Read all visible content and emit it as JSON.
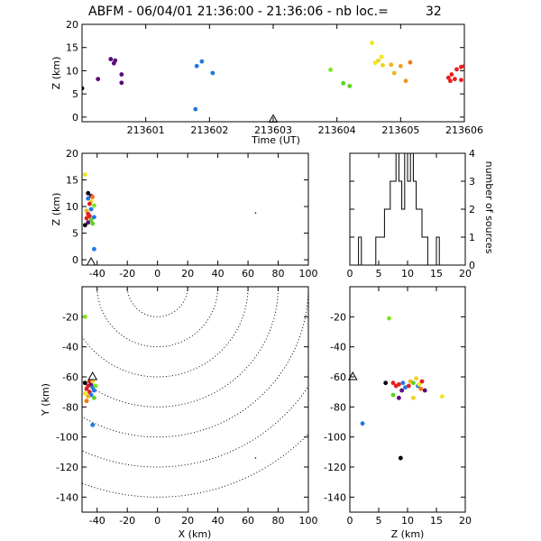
{
  "chart_data": [
    {
      "id": "time-height",
      "type": "scatter",
      "title": "ABFM - 06/04/01 21:36:00 - 21:36:06 - nb loc.=",
      "title_count": "32",
      "xlabel": "Time (UT)",
      "ylabel": "Z (km)",
      "xlim": [
        213600,
        213606
      ],
      "ylim": [
        -1,
        20
      ],
      "xticks": [
        213601,
        213602,
        213603,
        213604,
        213605,
        213606
      ],
      "yticks": [
        0,
        5,
        10,
        15,
        20
      ],
      "station_marker": {
        "x": 213603,
        "y": -0.5
      },
      "points": [
        {
          "x": 213600.0,
          "y": 6.2,
          "color": "#000000"
        },
        {
          "x": 213600.25,
          "y": 8.2,
          "color": "#5a0a78"
        },
        {
          "x": 213600.45,
          "y": 12.5,
          "color": "#5a0a78"
        },
        {
          "x": 213600.5,
          "y": 11.6,
          "color": "#5a0a78"
        },
        {
          "x": 213600.52,
          "y": 12.2,
          "color": "#5a0a78"
        },
        {
          "x": 213600.62,
          "y": 9.2,
          "color": "#5a0a78"
        },
        {
          "x": 213600.62,
          "y": 7.4,
          "color": "#5a0a78"
        },
        {
          "x": 213601.78,
          "y": 1.7,
          "color": "#1e78e6"
        },
        {
          "x": 213601.8,
          "y": 11.0,
          "color": "#1e78e6"
        },
        {
          "x": 213601.88,
          "y": 12.0,
          "color": "#1e78e6"
        },
        {
          "x": 213602.05,
          "y": 9.5,
          "color": "#1e78e6"
        },
        {
          "x": 213603.9,
          "y": 10.2,
          "color": "#78e61e"
        },
        {
          "x": 213604.1,
          "y": 7.3,
          "color": "#5ad21e"
        },
        {
          "x": 213604.2,
          "y": 6.7,
          "color": "#5ad21e"
        },
        {
          "x": 213604.55,
          "y": 16.0,
          "color": "#f0e61e"
        },
        {
          "x": 213604.6,
          "y": 11.7,
          "color": "#f0e61e"
        },
        {
          "x": 213604.65,
          "y": 12.2,
          "color": "#f0d21e"
        },
        {
          "x": 213604.7,
          "y": 13.0,
          "color": "#f0e61e"
        },
        {
          "x": 213604.72,
          "y": 11.2,
          "color": "#f0d21e"
        },
        {
          "x": 213604.85,
          "y": 11.3,
          "color": "#f0b41e"
        },
        {
          "x": 213604.9,
          "y": 9.5,
          "color": "#f0b41e"
        },
        {
          "x": 213605.0,
          "y": 11.0,
          "color": "#f0a01e"
        },
        {
          "x": 213605.08,
          "y": 7.8,
          "color": "#f0961e"
        },
        {
          "x": 213605.15,
          "y": 11.8,
          "color": "#f07814"
        },
        {
          "x": 213605.75,
          "y": 8.5,
          "color": "#e61e1e"
        },
        {
          "x": 213605.78,
          "y": 7.8,
          "color": "#e61e1e"
        },
        {
          "x": 213605.8,
          "y": 9.2,
          "color": "#e61e1e"
        },
        {
          "x": 213605.85,
          "y": 8.2,
          "color": "#e61e1e"
        },
        {
          "x": 213605.88,
          "y": 10.3,
          "color": "#e61e1e"
        },
        {
          "x": 213605.95,
          "y": 10.8,
          "color": "#e61e1e"
        },
        {
          "x": 213605.95,
          "y": 8.0,
          "color": "#e61e1e"
        },
        {
          "x": 213606.0,
          "y": 11.0,
          "color": "#e61e1e"
        }
      ]
    },
    {
      "id": "xz-view",
      "type": "scatter",
      "xlabel": "",
      "ylabel": "Z (km)",
      "xlim": [
        -50,
        100
      ],
      "ylim": [
        -1,
        20
      ],
      "xticks": [
        -40,
        -20,
        0,
        20,
        40,
        60,
        80,
        100
      ],
      "yticks": [
        0,
        5,
        10,
        15,
        20
      ],
      "station_marker": {
        "x": -44,
        "y": -0.5
      },
      "points": [
        {
          "x": -48,
          "y": 16.0,
          "color": "#f0e61e"
        },
        {
          "x": -46,
          "y": 12.5,
          "color": "#000000"
        },
        {
          "x": -44,
          "y": 12.0,
          "color": "#5a0a78"
        },
        {
          "x": -46,
          "y": 11.5,
          "color": "#1e78e6"
        },
        {
          "x": -44,
          "y": 11.0,
          "color": "#f0d21e"
        },
        {
          "x": -43,
          "y": 11.8,
          "color": "#f07814"
        },
        {
          "x": -45,
          "y": 10.5,
          "color": "#e61e1e"
        },
        {
          "x": -42,
          "y": 10.2,
          "color": "#78e61e"
        },
        {
          "x": -44,
          "y": 9.5,
          "color": "#1e78e6"
        },
        {
          "x": -47,
          "y": 9.2,
          "color": "#f0b41e"
        },
        {
          "x": -46,
          "y": 8.6,
          "color": "#e61e1e"
        },
        {
          "x": -45,
          "y": 8.2,
          "color": "#e61e1e"
        },
        {
          "x": -47,
          "y": 7.8,
          "color": "#e61e1e"
        },
        {
          "x": -44,
          "y": 7.5,
          "color": "#5ad21e"
        },
        {
          "x": -46,
          "y": 7.0,
          "color": "#5a0a78"
        },
        {
          "x": -48,
          "y": 6.5,
          "color": "#000000"
        },
        {
          "x": -43,
          "y": 6.8,
          "color": "#5ad21e"
        },
        {
          "x": -42,
          "y": 8.0,
          "color": "#1e78e6"
        },
        {
          "x": -42,
          "y": 2.0,
          "color": "#1e78e6"
        },
        {
          "x": 65,
          "y": 8.8,
          "color": "#000000"
        }
      ]
    },
    {
      "id": "z-histogram",
      "type": "histogram",
      "xlabel": "",
      "ylabel": "number of sources",
      "xlim": [
        0,
        20
      ],
      "ylim": [
        0,
        4
      ],
      "xticks": [
        0,
        5,
        10,
        15,
        20
      ],
      "yticks": [
        0,
        1,
        2,
        3,
        4
      ],
      "bin_width": 0.5,
      "bin_start": 1.5,
      "counts": [
        1,
        0,
        0,
        0,
        0,
        0,
        1,
        1,
        1,
        2,
        2,
        3,
        3,
        4,
        3,
        2,
        4,
        3,
        4,
        3,
        2,
        2,
        1,
        1,
        0,
        0,
        0,
        1
      ]
    },
    {
      "id": "xy-view",
      "type": "scatter",
      "xlabel": "X (km)",
      "ylabel": "Y (km)",
      "xlim": [
        -50,
        100
      ],
      "ylim": [
        -150,
        0
      ],
      "xticks": [
        -40,
        -20,
        0,
        20,
        40,
        60,
        80,
        100
      ],
      "yticks": [
        -20,
        -40,
        -60,
        -80,
        -100,
        -120,
        -140
      ],
      "station_marker": {
        "x": -43,
        "y": -60
      },
      "contours": [
        {
          "cx": 0,
          "cy": 0,
          "r": 20
        },
        {
          "cx": 0,
          "cy": 0,
          "r": 40
        },
        {
          "cx": 0,
          "cy": 0,
          "r": 60
        },
        {
          "cx": 0,
          "cy": 0,
          "r": 80
        },
        {
          "cx": 0,
          "cy": 0,
          "r": 100
        },
        {
          "cx": 0,
          "cy": 0,
          "r": 120
        },
        {
          "cx": 0,
          "cy": 0,
          "r": 140
        }
      ],
      "points": [
        {
          "x": -48,
          "y": -64,
          "color": "#000000"
        },
        {
          "x": -46,
          "y": -66,
          "color": "#e61e1e"
        },
        {
          "x": -45,
          "y": -63,
          "color": "#e61e1e"
        },
        {
          "x": -44,
          "y": -65,
          "color": "#5a0a78"
        },
        {
          "x": -47,
          "y": -68,
          "color": "#e61e1e"
        },
        {
          "x": -45,
          "y": -70,
          "color": "#e61e1e"
        },
        {
          "x": -43,
          "y": -67,
          "color": "#1e78e6"
        },
        {
          "x": -42,
          "y": -69,
          "color": "#1e78e6"
        },
        {
          "x": -44,
          "y": -72,
          "color": "#1e78e6"
        },
        {
          "x": -43,
          "y": -63,
          "color": "#f0d21e"
        },
        {
          "x": -46,
          "y": -73,
          "color": "#f0b41e"
        },
        {
          "x": -48,
          "y": -71,
          "color": "#f0e61e"
        },
        {
          "x": -41,
          "y": -66,
          "color": "#78e61e"
        },
        {
          "x": -42,
          "y": -74,
          "color": "#5ad21e"
        },
        {
          "x": -47,
          "y": -76,
          "color": "#f07814"
        },
        {
          "x": -48,
          "y": -20,
          "color": "#78e61e"
        },
        {
          "x": -43,
          "y": -92,
          "color": "#1e78e6"
        },
        {
          "x": 65,
          "y": -114,
          "color": "#000000"
        }
      ]
    },
    {
      "id": "zy-view",
      "type": "scatter",
      "xlabel": "Z (km)",
      "ylabel": "",
      "xlim": [
        0,
        20
      ],
      "ylim": [
        -150,
        0
      ],
      "xticks": [
        0,
        5,
        10,
        15,
        20
      ],
      "yticks": [
        -20,
        -40,
        -60,
        -80,
        -100,
        -120,
        -140
      ],
      "station_marker": {
        "x": 0.5,
        "y": -60
      },
      "points": [
        {
          "x": 6.8,
          "y": -21,
          "color": "#78e61e"
        },
        {
          "x": 6.2,
          "y": -64,
          "color": "#000000"
        },
        {
          "x": 7.5,
          "y": -64,
          "color": "#e61e1e"
        },
        {
          "x": 8.0,
          "y": -66,
          "color": "#e61e1e"
        },
        {
          "x": 8.5,
          "y": -65,
          "color": "#e61e1e"
        },
        {
          "x": 9.0,
          "y": -69,
          "color": "#5a0a78"
        },
        {
          "x": 9.2,
          "y": -64,
          "color": "#1e78e6"
        },
        {
          "x": 9.6,
          "y": -67,
          "color": "#1e78e6"
        },
        {
          "x": 10.2,
          "y": -66,
          "color": "#e61e1e"
        },
        {
          "x": 10.5,
          "y": -63,
          "color": "#f0b41e"
        },
        {
          "x": 11.0,
          "y": -64,
          "color": "#5ad21e"
        },
        {
          "x": 11.5,
          "y": -61,
          "color": "#f0d21e"
        },
        {
          "x": 11.8,
          "y": -66,
          "color": "#1e78e6"
        },
        {
          "x": 12.0,
          "y": -65,
          "color": "#f0e61e"
        },
        {
          "x": 12.3,
          "y": -68,
          "color": "#f07814"
        },
        {
          "x": 12.5,
          "y": -63,
          "color": "#e61e1e"
        },
        {
          "x": 13.0,
          "y": -69,
          "color": "#5a0a78"
        },
        {
          "x": 7.5,
          "y": -72,
          "color": "#5ad21e"
        },
        {
          "x": 8.5,
          "y": -74,
          "color": "#5a0a78"
        },
        {
          "x": 11.0,
          "y": -74,
          "color": "#f0d21e"
        },
        {
          "x": 16.0,
          "y": -73,
          "color": "#f0e61e"
        },
        {
          "x": 2.2,
          "y": -91,
          "color": "#1e78e6"
        },
        {
          "x": 8.8,
          "y": -114,
          "color": "#000000"
        }
      ]
    }
  ]
}
